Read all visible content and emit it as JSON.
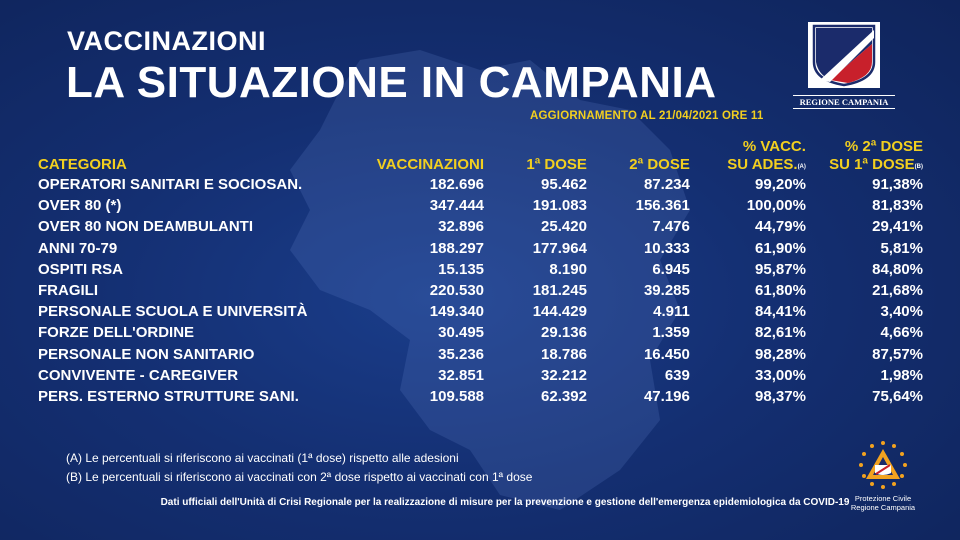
{
  "header": {
    "subtitle": "VACCINAZIONI",
    "title": "LA SITUAZIONE IN CAMPANIA",
    "update": "AGGIORNAMENTO AL 21/04/2021 ORE 11"
  },
  "logo": {
    "label": "REGIONE CAMPANIA",
    "emblem": "campania-coat-of-arms"
  },
  "table": {
    "headers": {
      "category": "CATEGORIA",
      "vaccinations": "VACCINAZIONI",
      "dose1": "1ª DOSE",
      "dose2": "2ª DOSE",
      "pct_a_line1": "% VACC.",
      "pct_a_line2": "SU ADES.",
      "pct_a_note": "(A)",
      "pct_b_line1": "% 2ª DOSE",
      "pct_b_line2": "SU 1ª DOSE",
      "pct_b_note": "(B)"
    },
    "rows": [
      {
        "category": "OPERATORI SANITARI E SOCIOSAN.",
        "vaccinations": "182.696",
        "dose1": "95.462",
        "dose2": "87.234",
        "pct_a": "99,20%",
        "pct_b": "91,38%"
      },
      {
        "category": "OVER 80 (*)",
        "vaccinations": "347.444",
        "dose1": "191.083",
        "dose2": "156.361",
        "pct_a": "100,00%",
        "pct_b": "81,83%"
      },
      {
        "category": "OVER 80 NON DEAMBULANTI",
        "vaccinations": "32.896",
        "dose1": "25.420",
        "dose2": "7.476",
        "pct_a": "44,79%",
        "pct_b": "29,41%"
      },
      {
        "category": "ANNI 70-79",
        "vaccinations": "188.297",
        "dose1": "177.964",
        "dose2": "10.333",
        "pct_a": "61,90%",
        "pct_b": "5,81%"
      },
      {
        "category": "OSPITI RSA",
        "vaccinations": "15.135",
        "dose1": "8.190",
        "dose2": "6.945",
        "pct_a": "95,87%",
        "pct_b": "84,80%"
      },
      {
        "category": "FRAGILI",
        "vaccinations": "220.530",
        "dose1": "181.245",
        "dose2": "39.285",
        "pct_a": "61,80%",
        "pct_b": "21,68%"
      },
      {
        "category": "PERSONALE SCUOLA E UNIVERSITÀ",
        "vaccinations": "149.340",
        "dose1": "144.429",
        "dose2": "4.911",
        "pct_a": "84,41%",
        "pct_b": "3,40%"
      },
      {
        "category": "FORZE DELL'ORDINE",
        "vaccinations": "30.495",
        "dose1": "29.136",
        "dose2": "1.359",
        "pct_a": "82,61%",
        "pct_b": "4,66%"
      },
      {
        "category": "PERSONALE NON SANITARIO",
        "vaccinations": "35.236",
        "dose1": "18.786",
        "dose2": "16.450",
        "pct_a": "98,28%",
        "pct_b": "87,57%"
      },
      {
        "category": "CONVIVENTE - CAREGIVER",
        "vaccinations": "32.851",
        "dose1": "32.212",
        "dose2": "639",
        "pct_a": "33,00%",
        "pct_b": "1,98%"
      },
      {
        "category": "PERS. ESTERNO STRUTTURE SANI.",
        "vaccinations": "109.588",
        "dose1": "62.392",
        "dose2": "47.196",
        "pct_a": "98,37%",
        "pct_b": "75,64%"
      }
    ]
  },
  "notes": {
    "a": "(A) Le percentuali si riferiscono ai vaccinati (1ª dose) rispetto alle adesioni",
    "b": "(B) Le percentuali si riferiscono ai vaccinati con 2ª dose rispetto ai vaccinati con 1ª dose"
  },
  "footer": "Dati ufficiali dell'Unità di Crisi Regionale per la realizzazione di misure per la prevenzione e gestione dell'emergenza epidemiologica da COVID-19",
  "protezione_civile": {
    "line1": "Protezione Civile",
    "line2": "Regione Campania",
    "icon": "protezione-civile-emblem"
  },
  "colors": {
    "background": "#142f72",
    "accent": "#f2cf1f",
    "text": "#ffffff"
  }
}
